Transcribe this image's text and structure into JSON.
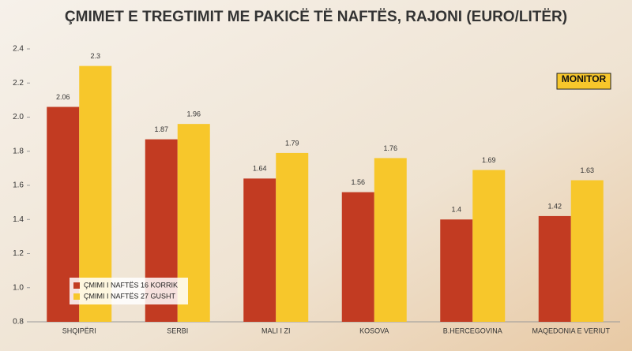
{
  "chart_data": {
    "type": "bar",
    "title": "ÇMIMET E TREGTIMIT ME PAKICË TË NAFTËS, RAJONI (EURO/LITËR)",
    "watermark": "MONITOR",
    "categories": [
      "SHQIPËRI",
      "SERBI",
      "MALI I ZI",
      "KOSOVA",
      "B.HERCEGOVINA",
      "MAQEDONIA E VERIUT"
    ],
    "series": [
      {
        "name": "ÇMIMI I NAFTËS 16 KORRIK",
        "color": "#c23b22",
        "values": [
          2.06,
          1.87,
          1.64,
          1.56,
          1.4,
          1.42
        ]
      },
      {
        "name": "ÇMIMI I NAFTËS 27 GUSHT",
        "color": "#f7c72b",
        "values": [
          2.3,
          1.96,
          1.79,
          1.76,
          1.69,
          1.63
        ]
      }
    ],
    "ylim": [
      0.8,
      2.4
    ],
    "yticks": [
      0.8,
      {
        "value": 1,
        "label": "1.0"
      },
      1.2,
      1.4,
      1.6,
      1.8,
      {
        "value": 2,
        "label": "2.0"
      },
      2.2,
      2.4
    ],
    "legend": "bottom-left"
  }
}
